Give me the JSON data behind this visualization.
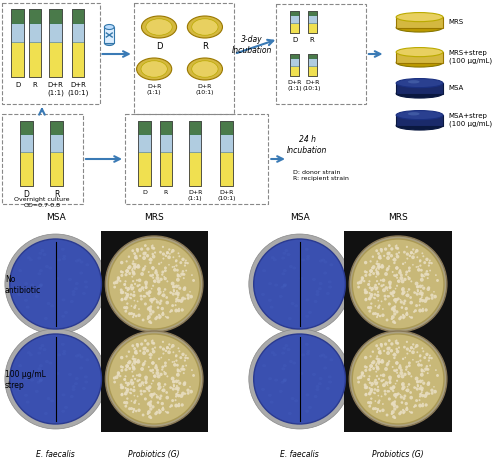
{
  "fig_width": 5.0,
  "fig_height": 4.64,
  "dpi": 100,
  "bg_color": "#ffffff",
  "plate_labels_right": [
    "MRS",
    "MRS+strep\n(100 μg/mL)",
    "MSA",
    "MSA+strep\n(100 μg/mL)"
  ],
  "col_headers": [
    "MSA",
    "MRS",
    "MSA",
    "MRS"
  ],
  "row_labels": [
    "No\nantibiotic",
    "100 μg/mL\nstrep"
  ],
  "bottom_strain_labels": [
    "E. faecalis",
    "Probiotics (G)",
    "E. faecalis",
    "Probiotics (G)"
  ],
  "tube_yellow": "#f0e050",
  "tube_blue": "#b0cce0",
  "tube_green": "#4a7a4a",
  "petri_yellow_outer": "#d4b840",
  "petri_yellow_inner": "#e8d060",
  "msa_dark": "#1a2a6a",
  "msa_mid": "#2a4090",
  "arrow_color": "#3a7ab5"
}
